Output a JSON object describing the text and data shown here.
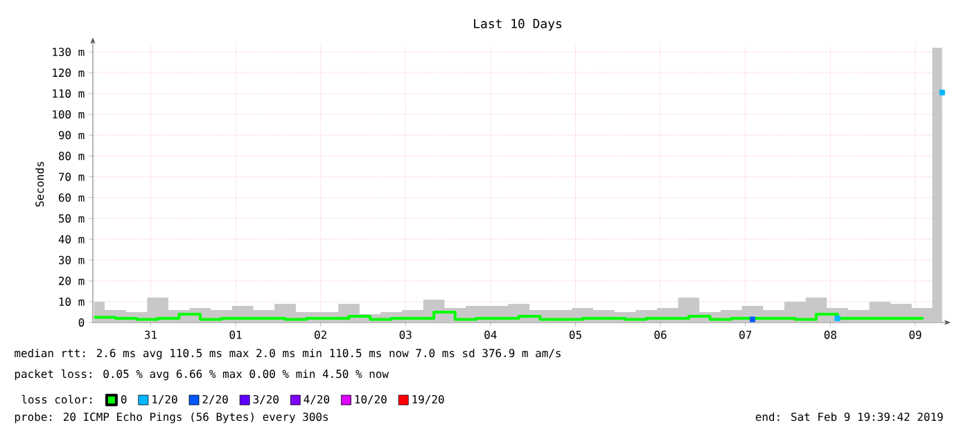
{
  "chart_data": {
    "type": "step",
    "title": "Last 10 Days",
    "ylabel": "Seconds",
    "x": [
      "2019-01-30T20:00",
      "2019-01-31T02:00",
      "2019-01-31T08:00",
      "2019-01-31T14:00",
      "2019-01-31T20:00",
      "2019-02-01T02:00",
      "2019-02-01T08:00",
      "2019-02-01T14:00",
      "2019-02-01T20:00",
      "2019-02-02T02:00",
      "2019-02-02T08:00",
      "2019-02-02T14:00",
      "2019-02-02T20:00",
      "2019-02-03T02:00",
      "2019-02-03T08:00",
      "2019-02-03T14:00",
      "2019-02-03T20:00",
      "2019-02-04T02:00",
      "2019-02-04T08:00",
      "2019-02-04T14:00",
      "2019-02-04T20:00",
      "2019-02-05T02:00",
      "2019-02-05T08:00",
      "2019-02-05T14:00",
      "2019-02-05T20:00",
      "2019-02-06T02:00",
      "2019-02-06T08:00",
      "2019-02-06T14:00",
      "2019-02-06T20:00",
      "2019-02-07T02:00",
      "2019-02-07T08:00",
      "2019-02-07T14:00",
      "2019-02-07T20:00",
      "2019-02-08T02:00",
      "2019-02-08T08:00",
      "2019-02-08T14:00",
      "2019-02-08T20:00",
      "2019-02-09T02:00",
      "2019-02-09T08:00",
      "2019-02-09T14:00",
      "2019-02-09T19:35"
    ],
    "series": [
      {
        "type": "area",
        "color": "#c8c8c8",
        "values": [
          10,
          6,
          5,
          12,
          6,
          7,
          6,
          8,
          6,
          9,
          5,
          5,
          9,
          4,
          5,
          6,
          11,
          7,
          8,
          8,
          9,
          6,
          6,
          7,
          6,
          5,
          6,
          7,
          12,
          5,
          6,
          8,
          6,
          10,
          12,
          7,
          6,
          10,
          9,
          7,
          132
        ]
      },
      {
        "name": "0",
        "color": "#00ff00",
        "values": [
          2.5,
          2,
          1.5,
          2,
          4,
          1.5,
          2,
          2,
          2,
          1.5,
          2,
          2,
          3,
          1.5,
          2,
          2,
          5,
          1.5,
          2,
          2,
          3,
          1.5,
          1.5,
          2,
          2,
          1.5,
          2,
          2,
          3,
          1.5,
          2,
          2,
          2,
          1.5,
          4,
          2,
          2,
          2,
          2,
          1.5,
          null
        ]
      },
      {
        "type": "scatter",
        "marker": "square",
        "name": "1/20",
        "color": "#00b8ff",
        "values": [
          null,
          null,
          null,
          null,
          null,
          null,
          null,
          null,
          null,
          null,
          null,
          null,
          null,
          null,
          null,
          null,
          null,
          null,
          null,
          null,
          null,
          null,
          null,
          null,
          null,
          null,
          null,
          null,
          null,
          null,
          null,
          null,
          null,
          null,
          null,
          2,
          null,
          null,
          null,
          null,
          110.5
        ]
      },
      {
        "type": "scatter",
        "marker": "square",
        "name": "2/20",
        "color": "#0059ff",
        "values": [
          null,
          null,
          null,
          null,
          null,
          null,
          null,
          null,
          null,
          null,
          null,
          null,
          null,
          null,
          null,
          null,
          null,
          null,
          null,
          null,
          null,
          null,
          null,
          null,
          null,
          null,
          null,
          null,
          null,
          null,
          null,
          1.5,
          null,
          null,
          null,
          null,
          null,
          null,
          null,
          null,
          null
        ]
      },
      {
        "type": "scatter",
        "name": "3/20",
        "color": "#5e00ff",
        "values": [
          null,
          null,
          null,
          null,
          null,
          null,
          null,
          null,
          null,
          null,
          null,
          null,
          null,
          null,
          null,
          null,
          null,
          null,
          null,
          null,
          null,
          null,
          null,
          null,
          null,
          null,
          null,
          null,
          null,
          null,
          null,
          null,
          null,
          null,
          null,
          null,
          null,
          null,
          null,
          null,
          null
        ]
      },
      {
        "type": "scatter",
        "name": "4/20",
        "color": "#7e00ff",
        "values": [
          null,
          null,
          null,
          null,
          null,
          null,
          null,
          null,
          null,
          null,
          null,
          null,
          null,
          null,
          null,
          null,
          null,
          null,
          null,
          null,
          null,
          null,
          null,
          null,
          null,
          null,
          null,
          null,
          null,
          null,
          null,
          null,
          null,
          null,
          null,
          null,
          null,
          null,
          null,
          null,
          null
        ]
      },
      {
        "type": "scatter",
        "name": "10/20",
        "color": "#dd00ff",
        "values": [
          null,
          null,
          null,
          null,
          null,
          null,
          null,
          null,
          null,
          null,
          null,
          null,
          null,
          null,
          null,
          null,
          null,
          null,
          null,
          null,
          null,
          null,
          null,
          null,
          null,
          null,
          null,
          null,
          null,
          null,
          null,
          null,
          null,
          null,
          null,
          null,
          null,
          null,
          null,
          null,
          null
        ]
      },
      {
        "type": "scatter",
        "name": "19/20",
        "color": "#ff0000",
        "values": [
          null,
          null,
          null,
          null,
          null,
          null,
          null,
          null,
          null,
          null,
          null,
          null,
          null,
          null,
          null,
          null,
          null,
          null,
          null,
          null,
          null,
          null,
          null,
          null,
          null,
          null,
          null,
          null,
          null,
          null,
          null,
          null,
          null,
          null,
          null,
          null,
          null,
          null,
          null,
          null,
          null
        ]
      }
    ],
    "legend": "bottom",
    "legend_title": "loss color:",
    "xlim": [
      "2019-01-30T19:40",
      "2019-02-09T19:40"
    ],
    "xticks": [
      {
        "value": "2019-01-31T12:00",
        "label": "31"
      },
      {
        "value": "2019-02-01T12:00",
        "label": "01"
      },
      {
        "value": "2019-02-02T12:00",
        "label": "02"
      },
      {
        "value": "2019-02-03T12:00",
        "label": "03"
      },
      {
        "value": "2019-02-04T12:00",
        "label": "04"
      },
      {
        "value": "2019-02-05T12:00",
        "label": "05"
      },
      {
        "value": "2019-02-06T12:00",
        "label": "06"
      },
      {
        "value": "2019-02-07T12:00",
        "label": "07"
      },
      {
        "value": "2019-02-08T12:00",
        "label": "08"
      },
      {
        "value": "2019-02-09T12:00",
        "label": "09"
      }
    ],
    "ylim": [
      0,
      133
    ],
    "yticks": [
      0,
      {
        "value": 10,
        "label": "10 m"
      },
      {
        "value": 20,
        "label": "20 m"
      },
      {
        "value": 30,
        "label": "30 m"
      },
      {
        "value": 40,
        "label": "40 m"
      },
      {
        "value": 50,
        "label": "50 m"
      },
      {
        "value": 60,
        "label": "60 m"
      },
      {
        "value": 70,
        "label": "70 m"
      },
      {
        "value": 80,
        "label": "80 m"
      },
      {
        "value": 90,
        "label": "90 m"
      },
      {
        "value": 100,
        "label": "100 m"
      },
      {
        "value": 110,
        "label": "110 m"
      },
      {
        "value": 120,
        "label": "120 m"
      },
      {
        "value": 130,
        "label": "130 m"
      }
    ],
    "grid": true,
    "annotations": [
      "median rtt:  2.6 ms avg  110.5 ms max  2.0 ms min  110.5 ms now  7.0 ms sd  376.9 m am/s",
      "packet loss: 0.05 % avg  6.66 % max  0.00 % min  4.50 % now",
      "probe:       20 ICMP Echo Pings (56 Bytes) every 300s",
      "end: Sat Feb  9 19:39:42 2019"
    ]
  }
}
